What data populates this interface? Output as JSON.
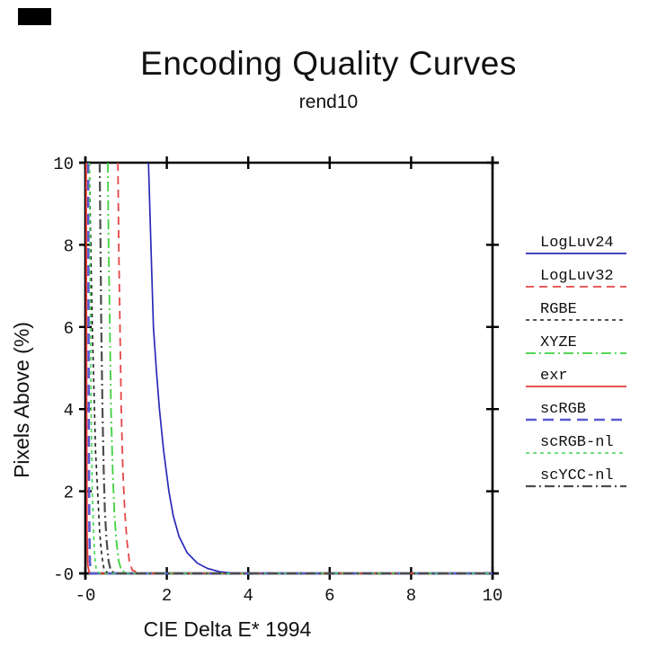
{
  "title": "Encoding Quality Curves",
  "subtitle": "rend10",
  "chart_data": {
    "type": "line",
    "title": "Encoding Quality Curves",
    "subtitle": "rend10",
    "xlabel": "CIE Delta E* 1994",
    "ylabel": "Pixels Above (%)",
    "xlim": [
      0,
      10
    ],
    "ylim": [
      0,
      10
    ],
    "grid": false,
    "legend_position": "right-outside",
    "axis_color": "#000000",
    "x_ticks": {
      "values": [
        0,
        2,
        4,
        6,
        8,
        10
      ],
      "labels": [
        "-0",
        "2",
        "4",
        "6",
        "8",
        "10"
      ]
    },
    "y_ticks": {
      "values": [
        0,
        2,
        4,
        6,
        8,
        10
      ],
      "labels": [
        "-0",
        "2",
        "4",
        "6",
        "8",
        "10"
      ]
    },
    "series": [
      {
        "name": "LogLuv24",
        "color": "#2a2ab8",
        "dash": [],
        "width": 1.7,
        "points": [
          [
            1.55,
            10
          ],
          [
            1.61,
            8
          ],
          [
            1.67,
            6
          ],
          [
            1.74,
            5
          ],
          [
            1.82,
            4
          ],
          [
            1.92,
            3
          ],
          [
            2.05,
            2
          ],
          [
            2.16,
            1.4
          ],
          [
            2.3,
            0.9
          ],
          [
            2.5,
            0.5
          ],
          [
            2.75,
            0.25
          ],
          [
            3.0,
            0.12
          ],
          [
            3.3,
            0.04
          ],
          [
            3.6,
            0.01
          ],
          [
            4.2,
            0
          ],
          [
            10,
            0
          ]
        ]
      },
      {
        "name": "LogLuv32",
        "color": "#e64545",
        "dash": [
          9,
          6
        ],
        "width": 1.8,
        "points": [
          [
            0.8,
            10
          ],
          [
            0.82,
            8
          ],
          [
            0.85,
            6
          ],
          [
            0.88,
            4
          ],
          [
            0.92,
            2.5
          ],
          [
            0.97,
            1.5
          ],
          [
            1.02,
            0.8
          ],
          [
            1.08,
            0.3
          ],
          [
            1.15,
            0.08
          ],
          [
            1.3,
            0.01
          ],
          [
            1.5,
            0
          ],
          [
            10,
            0
          ]
        ]
      },
      {
        "name": "RGBE",
        "color": "#1f1f1f",
        "dash": [
          4,
          4
        ],
        "width": 1.6,
        "points": [
          [
            0.1,
            10
          ],
          [
            0.13,
            8
          ],
          [
            0.17,
            6
          ],
          [
            0.21,
            4.5
          ],
          [
            0.25,
            3
          ],
          [
            0.3,
            2
          ],
          [
            0.35,
            1
          ],
          [
            0.4,
            0.45
          ],
          [
            0.46,
            0.1
          ],
          [
            0.55,
            0.01
          ],
          [
            0.7,
            0
          ],
          [
            10,
            0
          ]
        ]
      },
      {
        "name": "XYZE",
        "color": "#3ed13e",
        "dash": [
          11,
          4,
          2,
          4
        ],
        "width": 1.8,
        "points": [
          [
            0.55,
            10
          ],
          [
            0.57,
            8
          ],
          [
            0.6,
            6
          ],
          [
            0.63,
            4
          ],
          [
            0.67,
            2.5
          ],
          [
            0.71,
            1.5
          ],
          [
            0.76,
            0.8
          ],
          [
            0.82,
            0.3
          ],
          [
            0.88,
            0.08
          ],
          [
            1.0,
            0.01
          ],
          [
            1.2,
            0
          ],
          [
            10,
            0
          ]
        ]
      },
      {
        "name": "exr",
        "color": "#e63a3a",
        "dash": [],
        "width": 1.8,
        "points": [
          [
            0.02,
            10
          ],
          [
            0.03,
            4
          ],
          [
            0.04,
            1
          ],
          [
            0.06,
            0.2
          ],
          [
            0.1,
            0
          ],
          [
            10,
            0
          ]
        ]
      },
      {
        "name": "scRGB",
        "color": "#5a5ad2",
        "dash": [
          12,
          7
        ],
        "width": 2.6,
        "points": [
          [
            0.07,
            10
          ],
          [
            0.08,
            5
          ],
          [
            0.09,
            2
          ],
          [
            0.1,
            1
          ],
          [
            0.11,
            0.3
          ],
          [
            0.13,
            0
          ],
          [
            10,
            0
          ]
        ]
      },
      {
        "name": "scRGB-nl",
        "color": "#42d556",
        "dash": [
          4,
          4
        ],
        "width": 1.6,
        "points": [
          [
            0.1,
            10
          ],
          [
            0.12,
            7
          ],
          [
            0.14,
            4
          ],
          [
            0.17,
            2
          ],
          [
            0.2,
            1
          ],
          [
            0.23,
            0.4
          ],
          [
            0.27,
            0.08
          ],
          [
            0.35,
            0
          ],
          [
            10,
            0
          ]
        ]
      },
      {
        "name": "scYCC-nl",
        "color": "#4d4d4d",
        "dash": [
          11,
          4,
          2,
          4
        ],
        "width": 2.2,
        "points": [
          [
            0.35,
            10
          ],
          [
            0.37,
            8
          ],
          [
            0.39,
            6
          ],
          [
            0.42,
            4
          ],
          [
            0.45,
            2.5
          ],
          [
            0.48,
            1.5
          ],
          [
            0.52,
            0.8
          ],
          [
            0.57,
            0.3
          ],
          [
            0.62,
            0.08
          ],
          [
            0.72,
            0
          ],
          [
            10,
            0
          ]
        ]
      }
    ]
  }
}
